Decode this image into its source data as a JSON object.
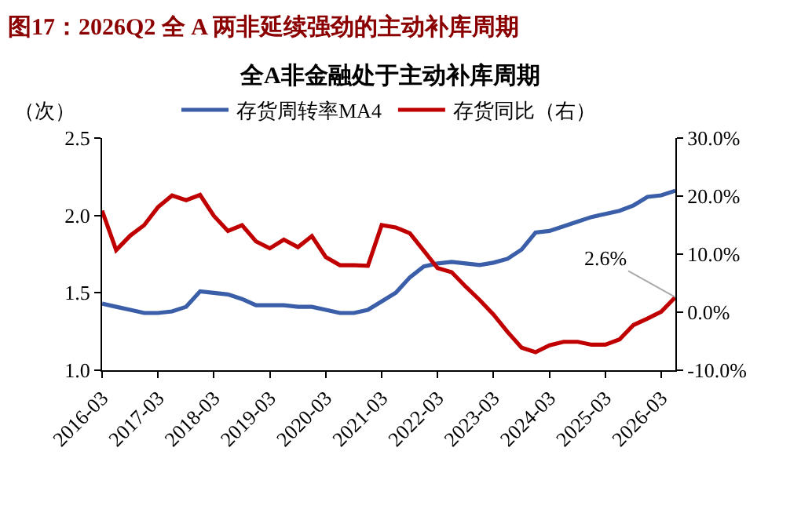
{
  "chart_data": {
    "type": "line",
    "title": "图17：2026Q2 全 A 两非延续强劲的主动补库周期",
    "subtitle": "全A非金融处于主动补库周期",
    "ylabel": "（次）",
    "x": [
      "2016-03",
      "2016-06",
      "2016-09",
      "2016-12",
      "2017-03",
      "2017-06",
      "2017-09",
      "2017-12",
      "2018-03",
      "2018-06",
      "2018-09",
      "2018-12",
      "2019-03",
      "2019-06",
      "2019-09",
      "2019-12",
      "2020-03",
      "2020-06",
      "2020-09",
      "2020-12",
      "2021-03",
      "2021-06",
      "2021-09",
      "2021-12",
      "2022-03",
      "2022-06",
      "2022-09",
      "2022-12",
      "2023-03",
      "2023-06",
      "2023-09",
      "2023-12",
      "2024-03",
      "2024-06",
      "2024-09",
      "2024-12",
      "2025-03",
      "2025-06",
      "2025-09",
      "2025-12",
      "2026-03",
      "2026-06"
    ],
    "series": [
      {
        "name": "存货周转率MA4",
        "color": "#3a5ea8",
        "values": [
          1.43,
          1.41,
          1.39,
          1.37,
          1.37,
          1.38,
          1.41,
          1.51,
          1.5,
          1.49,
          1.46,
          1.42,
          1.42,
          1.42,
          1.41,
          1.41,
          1.39,
          1.37,
          1.37,
          1.39,
          1.445,
          1.5,
          1.6,
          1.67,
          1.69,
          1.7,
          1.69,
          1.68,
          1.695,
          1.72,
          1.78,
          1.89,
          1.9,
          1.93,
          1.96,
          1.99,
          2.01,
          2.03,
          2.065,
          2.12,
          2.13,
          2.16
        ]
      },
      {
        "name": "存货同比（右）",
        "color": "#c00000",
        "axis": "y2",
        "values": [
          17.5,
          10.7,
          13.2,
          15.0,
          18.1,
          20.1,
          19.3,
          20.2,
          16.6,
          14.0,
          15.0,
          12.2,
          11.0,
          12.5,
          11.2,
          13.1,
          9.5,
          8.1,
          8.1,
          8.0,
          15.0,
          14.6,
          13.6,
          10.6,
          7.6,
          6.9,
          4.4,
          2.1,
          -0.4,
          -3.4,
          -6.1,
          -6.9,
          -5.7,
          -5.1,
          -5.1,
          -5.6,
          -5.6,
          -4.7,
          -2.2,
          -1.1,
          0.1,
          2.6
        ],
        "value_labels": [
          null,
          null,
          null,
          null,
          null,
          null,
          null,
          null,
          null,
          null,
          null,
          null,
          null,
          null,
          null,
          null,
          null,
          null,
          null,
          null,
          null,
          null,
          null,
          null,
          null,
          null,
          null,
          null,
          null,
          null,
          null,
          null,
          null,
          null,
          null,
          null,
          null,
          null,
          null,
          null,
          null,
          "2.6%"
        ]
      }
    ],
    "xlim": [
      "2016-03",
      "2026-06"
    ],
    "xticks": [
      "2016-03",
      "2017-03",
      "2018-03",
      "2019-03",
      "2020-03",
      "2021-03",
      "2022-03",
      "2023-03",
      "2024-03",
      "2025-03",
      "2026-03"
    ],
    "ylim": [
      1.0,
      2.5
    ],
    "yticks": [
      {
        "value": 1,
        "label": "1.0"
      },
      1.5,
      {
        "value": 2,
        "label": "2.0"
      },
      2.5
    ],
    "y2lim": [
      -10,
      30
    ],
    "y2ticks": [
      {
        "value": -10,
        "label": "-10.0%"
      },
      {
        "value": 0,
        "label": "0.0%"
      },
      {
        "value": 10,
        "label": "10.0%"
      },
      {
        "value": 20,
        "label": "20.0%"
      },
      {
        "value": 30,
        "label": "30.0%"
      }
    ],
    "legend": "top",
    "grid": false,
    "marker": "none",
    "line_style": "solid"
  }
}
